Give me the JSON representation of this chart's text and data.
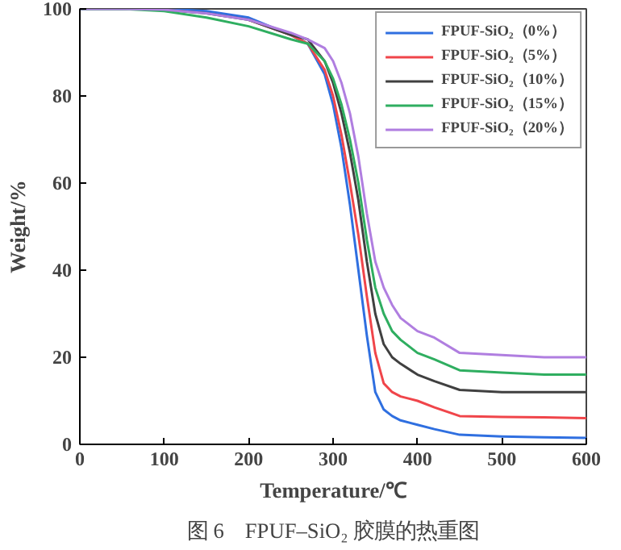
{
  "chart_data": {
    "type": "line",
    "xlabel": "Temperature/℃",
    "ylabel": "Weight/%",
    "annotations": [
      "图 6　FPUF–SiO₂ 胶膜的热重图"
    ],
    "x": [
      0,
      50,
      100,
      150,
      200,
      250,
      270,
      290,
      300,
      310,
      320,
      330,
      340,
      350,
      360,
      370,
      380,
      400,
      420,
      450,
      500,
      550,
      600
    ],
    "series": [
      {
        "name": "FPUF-SiO₂（0%）",
        "color": "#2f6fe0",
        "values": [
          100,
          100,
          100,
          99.5,
          98,
          94,
          92,
          85,
          78,
          68,
          55,
          40,
          25,
          12,
          8,
          6.5,
          5.5,
          4.5,
          3.5,
          2.2,
          1.8,
          1.6,
          1.5
        ]
      },
      {
        "name": "FPUF-SiO₂（5%）",
        "color": "#f0454a",
        "values": [
          null,
          null,
          null,
          null,
          97.5,
          94,
          92,
          86,
          80,
          71,
          60,
          48,
          34,
          21,
          14,
          12,
          11,
          10,
          8.5,
          6.5,
          6.3,
          6.2,
          6
        ]
      },
      {
        "name": "FPUF-SiO₂（10%）",
        "color": "#404040",
        "values": [
          100,
          100,
          99.8,
          99,
          97.5,
          94,
          93,
          88,
          83,
          76,
          67,
          56,
          42,
          30,
          23,
          20,
          18.5,
          16,
          14.5,
          12.5,
          12,
          12,
          12
        ]
      },
      {
        "name": "FPUF-SiO₂（15%）",
        "color": "#2fae60",
        "values": [
          100,
          100,
          99.5,
          98,
          96,
          93,
          92,
          88,
          84,
          78,
          70,
          60,
          47,
          36,
          30,
          26,
          24,
          21,
          19.5,
          17,
          16.5,
          16,
          16
        ]
      },
      {
        "name": "FPUF-SiO₂（20%）",
        "color": "#b07ee0",
        "values": [
          100,
          100,
          99.8,
          99,
          97.5,
          94.5,
          93,
          91,
          88,
          83,
          76,
          66,
          53,
          42,
          36,
          32,
          29,
          26,
          24.5,
          21,
          20.5,
          20,
          20
        ]
      }
    ],
    "xlim": [
      0,
      600
    ],
    "ylim": [
      0,
      100
    ],
    "xticks": [
      0,
      100,
      200,
      300,
      400,
      500,
      600
    ],
    "yticks": [
      0,
      20,
      40,
      60,
      80,
      100
    ],
    "grid": false,
    "legend": "top right",
    "marker": "none",
    "line_style": "solid"
  }
}
